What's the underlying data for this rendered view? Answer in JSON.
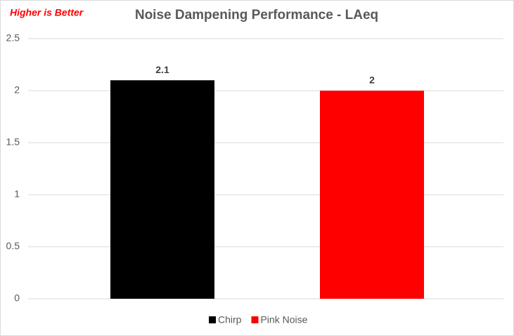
{
  "chart_data": {
    "type": "bar",
    "title": "Noise Dampening Performance - LAeq",
    "annotation": "Higher is Better",
    "categories": [
      null
    ],
    "series": [
      {
        "name": "Chirp",
        "color": "#000000",
        "values": [
          2.1
        ]
      },
      {
        "name": "Pink Noise",
        "color": "#ff0000",
        "values": [
          2
        ]
      }
    ],
    "ylim": [
      0,
      2.5
    ],
    "yticks": [
      0,
      0.5,
      1,
      1.5,
      2,
      2.5
    ],
    "grid": true,
    "legend": "bottom",
    "data_labels": true
  }
}
